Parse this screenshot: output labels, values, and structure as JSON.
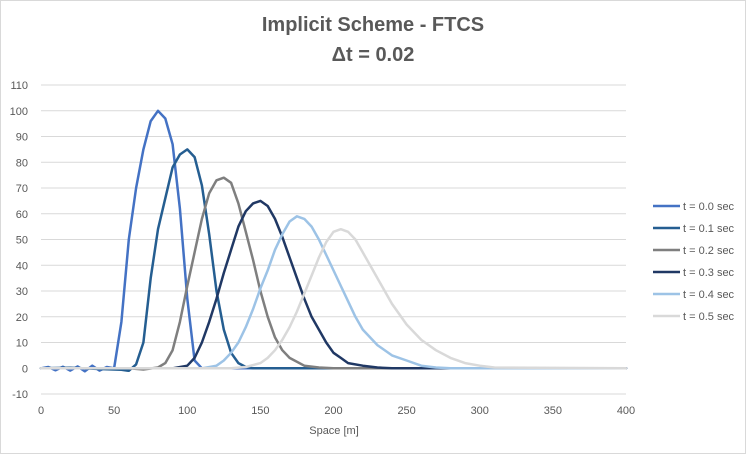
{
  "chart_data": {
    "type": "line",
    "title": "Implicit Scheme - FTCS",
    "subtitle": "Δt = 0.02",
    "xlabel": "Space [m]",
    "ylabel": "",
    "xlim": [
      0,
      400
    ],
    "ylim": [
      -10,
      110
    ],
    "x_ticks": [
      0,
      50,
      100,
      150,
      200,
      250,
      300,
      350,
      400
    ],
    "y_ticks": [
      -10,
      0,
      10,
      20,
      30,
      40,
      50,
      60,
      70,
      80,
      90,
      100,
      110
    ],
    "grid": "horizontal",
    "legend_position": "right",
    "series": [
      {
        "name": "t = 0.0 sec",
        "color": "#4472c4",
        "x": [
          0,
          5,
          10,
          15,
          20,
          25,
          30,
          35,
          40,
          45,
          50,
          55,
          60,
          65,
          70,
          75,
          80,
          85,
          90,
          95,
          100,
          105,
          110,
          115,
          120,
          400
        ],
        "y": [
          0,
          0.5,
          -0.8,
          0.6,
          -0.9,
          0.7,
          -1.2,
          1.0,
          -0.9,
          0.5,
          0,
          18,
          50,
          70,
          85,
          96,
          100,
          97,
          87,
          62,
          27,
          3,
          0,
          0,
          0,
          0
        ]
      },
      {
        "name": "t = 0.1 sec",
        "color": "#255e91",
        "x": [
          0,
          20,
          40,
          55,
          60,
          65,
          70,
          75,
          80,
          85,
          90,
          95,
          100,
          105,
          110,
          115,
          120,
          125,
          130,
          135,
          140,
          145,
          150,
          155,
          160,
          170,
          400
        ],
        "y": [
          0,
          0.2,
          -0.3,
          -0.6,
          -1.0,
          1.5,
          10,
          35,
          54,
          66,
          78,
          83,
          85,
          82,
          71,
          52,
          30,
          15,
          6,
          2,
          0.5,
          0,
          0,
          0,
          0,
          0,
          0
        ]
      },
      {
        "name": "t = 0.2 sec",
        "color": "#7f7f7f",
        "x": [
          0,
          60,
          70,
          80,
          85,
          90,
          95,
          100,
          105,
          110,
          115,
          120,
          125,
          130,
          135,
          140,
          145,
          150,
          155,
          160,
          165,
          170,
          180,
          190,
          200,
          210,
          400
        ],
        "y": [
          0,
          0,
          -0.5,
          0.3,
          2,
          7,
          18,
          32,
          45,
          58,
          68,
          73,
          74,
          72,
          64,
          53,
          42,
          30,
          20,
          12,
          7,
          4,
          1,
          0.3,
          0,
          0,
          0
        ]
      },
      {
        "name": "t = 0.3 sec",
        "color": "#203864",
        "x": [
          0,
          90,
          100,
          105,
          110,
          115,
          120,
          125,
          130,
          135,
          140,
          145,
          150,
          155,
          160,
          165,
          170,
          175,
          180,
          185,
          190,
          195,
          200,
          205,
          210,
          220,
          230,
          240,
          400
        ],
        "y": [
          0,
          0,
          1,
          4,
          10,
          18,
          27,
          37,
          46,
          55,
          61,
          64,
          65,
          63,
          58,
          51,
          43,
          35,
          27,
          20,
          15,
          10,
          6,
          4,
          2,
          1,
          0.3,
          0,
          0
        ]
      },
      {
        "name": "t = 0.4 sec",
        "color": "#9dc3e6",
        "x": [
          0,
          110,
          120,
          125,
          130,
          135,
          140,
          145,
          150,
          155,
          160,
          165,
          170,
          175,
          180,
          185,
          190,
          195,
          200,
          205,
          210,
          215,
          220,
          230,
          240,
          250,
          260,
          270,
          280,
          400
        ],
        "y": [
          0,
          0,
          1,
          3,
          6,
          10,
          16,
          23,
          31,
          38,
          46,
          52,
          57,
          59,
          58,
          55,
          50,
          44,
          38,
          32,
          26,
          20,
          15,
          9,
          5,
          3,
          1,
          0.3,
          0,
          0
        ]
      },
      {
        "name": "t = 0.5 sec",
        "color": "#d9d9d9",
        "x": [
          0,
          130,
          140,
          150,
          155,
          160,
          165,
          170,
          175,
          180,
          185,
          190,
          195,
          200,
          205,
          210,
          215,
          220,
          225,
          230,
          235,
          240,
          250,
          260,
          270,
          280,
          290,
          300,
          310,
          400
        ],
        "y": [
          0,
          0,
          0.5,
          2,
          4,
          7,
          11,
          16,
          22,
          29,
          36,
          43,
          49,
          53,
          54,
          53,
          50,
          45,
          40,
          35,
          30,
          25,
          17,
          11,
          7,
          4,
          2,
          1,
          0.3,
          0
        ]
      }
    ]
  }
}
